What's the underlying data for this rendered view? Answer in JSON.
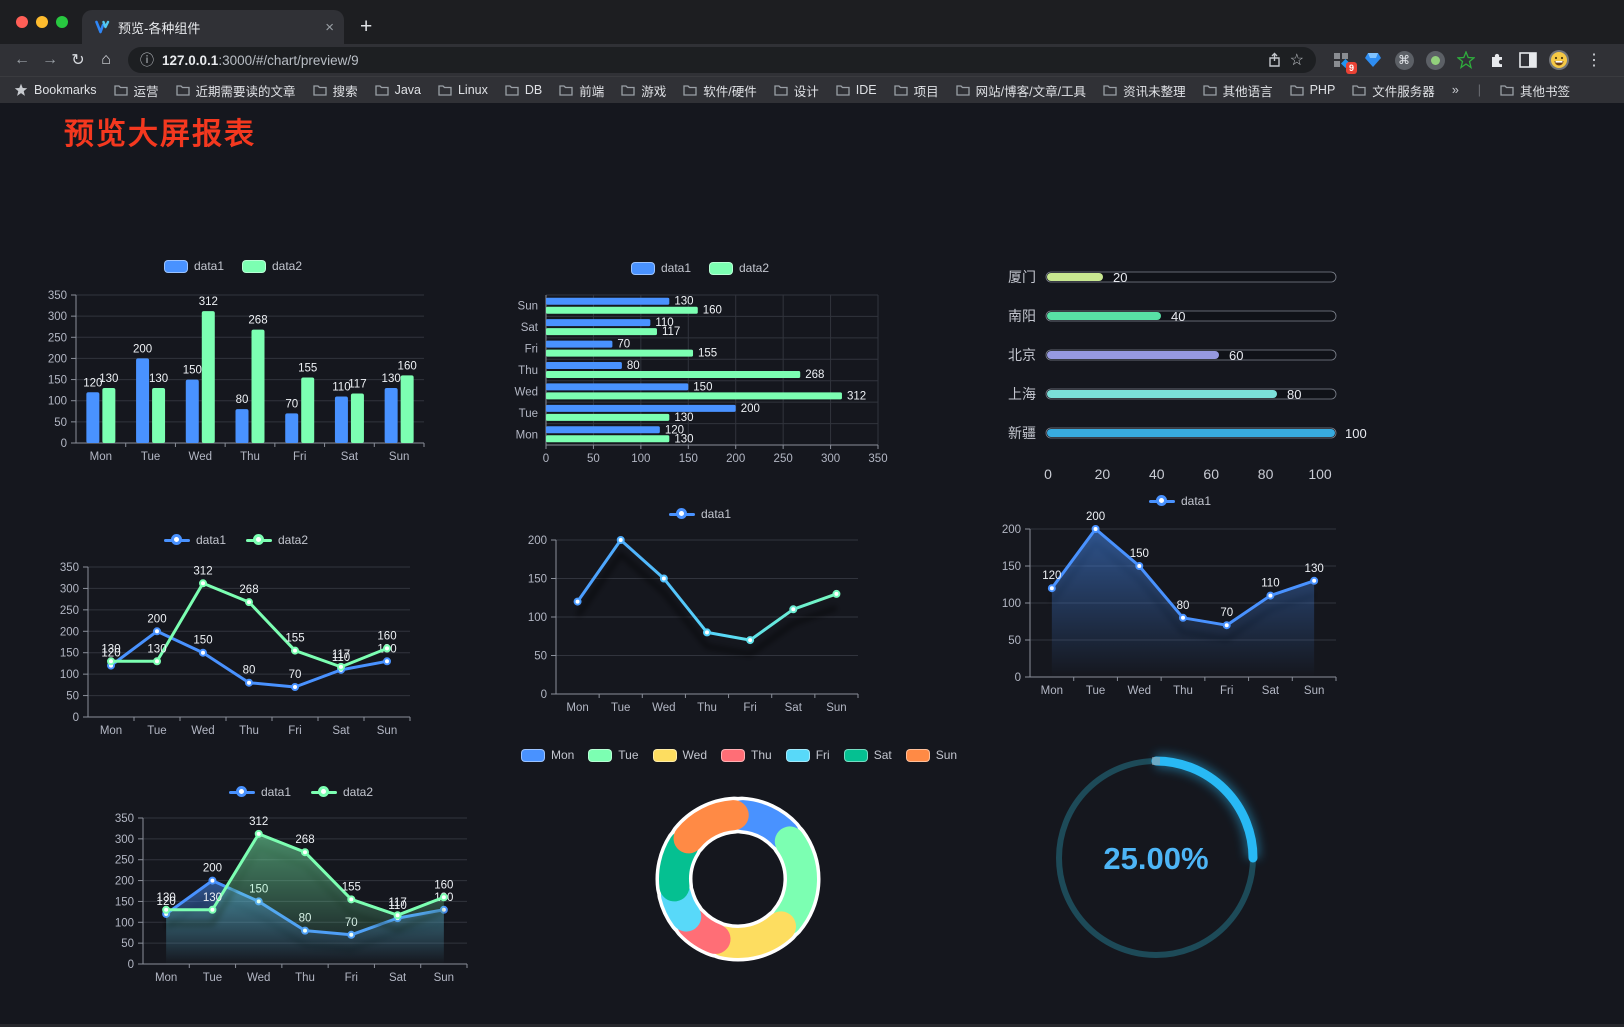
{
  "browser": {
    "tab_title": "预览-各种组件",
    "close_glyph": "×",
    "new_tab_glyph": "+",
    "back_glyph": "←",
    "forward_glyph": "→",
    "reload_glyph": "↻",
    "home_glyph": "⌂",
    "info_glyph": "ⓘ",
    "star_glyph": "☆",
    "menu_glyph": "⋮",
    "url_host": "127.0.0.1",
    "url_rest": ":3000/#/chart/preview/9",
    "extension_badge": "9",
    "cmd_glyph": "⌘",
    "bookmarks_label": "Bookmarks",
    "bookmarks": [
      "运营",
      "近期需要读的文章",
      "搜索",
      "Java",
      "Linux",
      "DB",
      "前端",
      "游戏",
      "软件/硬件",
      "设计",
      "IDE",
      "项目",
      "网站/博客/文章/工具",
      "资讯未整理",
      "其他语言",
      "PHP",
      "文件服务器"
    ],
    "bookmarks_overflow": "»",
    "other_bookmarks": "其他书签"
  },
  "page": {
    "title": "预览大屏报表",
    "title_color": "#f4381f"
  },
  "chart_data": [
    {
      "id": "bar1",
      "name": "grouped-bar-chart",
      "type": "bar",
      "categories": [
        "Mon",
        "Tue",
        "Wed",
        "Thu",
        "Fri",
        "Sat",
        "Sun"
      ],
      "series": [
        {
          "name": "data1",
          "color": "#4992ff",
          "values": [
            120,
            200,
            150,
            80,
            70,
            110,
            130
          ]
        },
        {
          "name": "data2",
          "color": "#7cffb2",
          "values": [
            130,
            130,
            312,
            268,
            155,
            117,
            160
          ]
        }
      ],
      "ylim": [
        0,
        350
      ],
      "ystep": 50,
      "labels": true,
      "legend_shape": "rect"
    },
    {
      "id": "hbar",
      "name": "grouped-horizontal-bar-chart",
      "type": "hbar",
      "categories": [
        "Mon",
        "Tue",
        "Wed",
        "Thu",
        "Fri",
        "Sat",
        "Sun"
      ],
      "series": [
        {
          "name": "data1",
          "color": "#4992ff",
          "values": [
            120,
            200,
            150,
            80,
            70,
            110,
            130
          ]
        },
        {
          "name": "data2",
          "color": "#7cffb2",
          "values": [
            130,
            130,
            312,
            268,
            155,
            117,
            160
          ]
        }
      ],
      "xlim": [
        0,
        350
      ],
      "xstep": 50,
      "labels": true,
      "legend_shape": "rect"
    },
    {
      "id": "progress",
      "name": "city-progress-chart",
      "type": "progress",
      "rows": [
        {
          "label": "厦门",
          "value": 20,
          "color": "#c8e790"
        },
        {
          "label": "南阳",
          "value": 40,
          "color": "#58e0a5"
        },
        {
          "label": "北京",
          "value": 60,
          "color": "#9699e0"
        },
        {
          "label": "上海",
          "value": 80,
          "color": "#7bdfd9"
        },
        {
          "label": "新疆",
          "value": 100,
          "color": "#38abdf"
        }
      ],
      "max": 100,
      "xticks": [
        0,
        20,
        40,
        60,
        80,
        100
      ]
    },
    {
      "id": "line1",
      "name": "multi-line-chart",
      "type": "line",
      "categories": [
        "Mon",
        "Tue",
        "Wed",
        "Thu",
        "Fri",
        "Sat",
        "Sun"
      ],
      "series": [
        {
          "name": "data1",
          "color": "#4992ff",
          "values": [
            120,
            200,
            150,
            80,
            70,
            110,
            130
          ],
          "area": false
        },
        {
          "name": "data2",
          "color": "#7cffb2",
          "values": [
            130,
            130,
            312,
            268,
            155,
            117,
            160
          ],
          "area": false
        }
      ],
      "ylim": [
        0,
        350
      ],
      "ystep": 50,
      "labels": true,
      "legend_shape": "line"
    },
    {
      "id": "line2",
      "name": "gradient-line-chart",
      "type": "line",
      "categories": [
        "Mon",
        "Tue",
        "Wed",
        "Thu",
        "Fri",
        "Sat",
        "Sun"
      ],
      "series": [
        {
          "name": "data1",
          "color": "#4992ff",
          "values": [
            120,
            200,
            150,
            80,
            70,
            110,
            130
          ],
          "area": false
        }
      ],
      "gradient": [
        "#4992ff",
        "#58d9f9",
        "#7cffb2"
      ],
      "shadow": true,
      "ylim": [
        0,
        200
      ],
      "ystep": 50,
      "labels": false,
      "legend_shape": "line"
    },
    {
      "id": "line3",
      "name": "area-line-chart",
      "type": "line",
      "categories": [
        "Mon",
        "Tue",
        "Wed",
        "Thu",
        "Fri",
        "Sat",
        "Sun"
      ],
      "series": [
        {
          "name": "data1",
          "color": "#4992ff",
          "values": [
            120,
            200,
            150,
            80,
            70,
            110,
            130
          ],
          "area": true
        }
      ],
      "ylim": [
        0,
        200
      ],
      "ystep": 50,
      "labels": true,
      "legend_shape": "line"
    },
    {
      "id": "line4",
      "name": "double-area-line-chart",
      "type": "line",
      "categories": [
        "Mon",
        "Tue",
        "Wed",
        "Thu",
        "Fri",
        "Sat",
        "Sun"
      ],
      "series": [
        {
          "name": "data1",
          "color": "#4992ff",
          "values": [
            120,
            200,
            150,
            80,
            70,
            110,
            130
          ],
          "area": true
        },
        {
          "name": "data2",
          "color": "#7cffb2",
          "values": [
            130,
            130,
            312,
            268,
            155,
            117,
            160
          ],
          "area": true
        }
      ],
      "ylim": [
        0,
        350
      ],
      "ystep": 50,
      "labels": true,
      "legend_shape": "line"
    },
    {
      "id": "pie",
      "name": "donut-pie-chart",
      "type": "pie",
      "items": [
        {
          "name": "Mon",
          "value": 120,
          "color": "#4992ff"
        },
        {
          "name": "Tue",
          "value": 200,
          "color": "#7cffb2"
        },
        {
          "name": "Wed",
          "value": 150,
          "color": "#fddd60"
        },
        {
          "name": "Thu",
          "value": 80,
          "color": "#ff6e76"
        },
        {
          "name": "Fri",
          "value": 70,
          "color": "#58d9f9"
        },
        {
          "name": "Sat",
          "value": 110,
          "color": "#05c091"
        },
        {
          "name": "Sun",
          "value": 130,
          "color": "#ff8a45"
        }
      ],
      "legend_shape": "rect"
    },
    {
      "id": "gauge",
      "name": "percentage-gauge",
      "type": "gauge",
      "value": 25,
      "label": "25.00%",
      "color": "#28b9f5",
      "track_color": "#1d4a58",
      "text_color": "#4db5f6"
    }
  ]
}
